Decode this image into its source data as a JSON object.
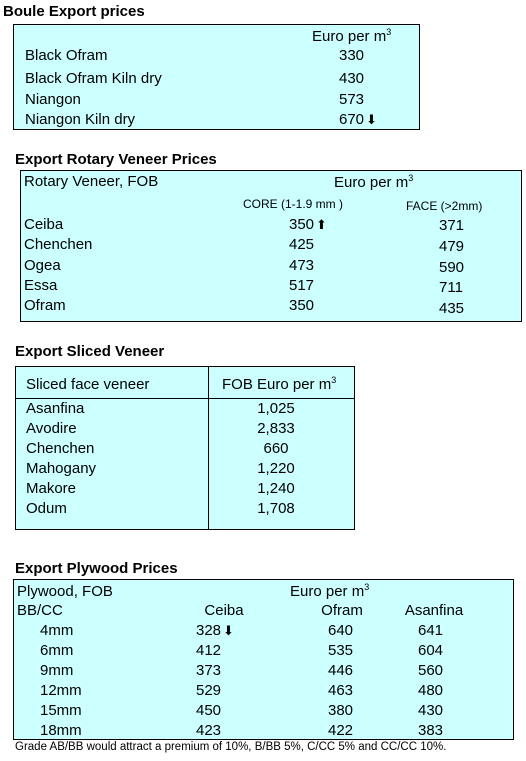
{
  "boule": {
    "title": "Boule Export prices",
    "header": "Euro per m",
    "unit_sup": "3",
    "rows": [
      {
        "name": "Black Ofram",
        "value": "330",
        "trend": ""
      },
      {
        "name": "Black Ofram  Kiln dry",
        "value": "430",
        "trend": ""
      },
      {
        "name": "Niangon",
        "value": "573",
        "trend": ""
      },
      {
        "name": "Niangon Kiln dry",
        "value": "670",
        "trend": "down"
      }
    ]
  },
  "rotary": {
    "title": "Export Rotary Veneer Prices",
    "label": "Rotary Veneer,  FOB",
    "header": "Euro  per m",
    "unit_sup": "3",
    "col1": "CORE (1-1.9 mm )",
    "col2": "FACE (>2mm)",
    "rows": [
      {
        "name": "Ceiba",
        "core": "350",
        "face": "371",
        "trend": "up"
      },
      {
        "name": "Chenchen",
        "core": "425",
        "face": "479",
        "trend": ""
      },
      {
        "name": "Ogea",
        "core": "473",
        "face": "590",
        "trend": ""
      },
      {
        "name": "Essa",
        "core": "517",
        "face": "711",
        "trend": ""
      },
      {
        "name": "Ofram",
        "core": "350",
        "face": "435",
        "trend": ""
      }
    ]
  },
  "sliced": {
    "title": "Export Sliced Veneer",
    "col1": "Sliced face veneer",
    "col2": "FOB Euro per m",
    "unit_sup": "3",
    "rows": [
      {
        "name": "Asanfina",
        "value": "1,025"
      },
      {
        "name": "Avodire",
        "value": "2,833"
      },
      {
        "name": "Chenchen",
        "value": "660"
      },
      {
        "name": "Mahogany",
        "value": "1,220"
      },
      {
        "name": "Makore",
        "value": "1,240"
      },
      {
        "name": "Odum",
        "value": "1,708"
      }
    ]
  },
  "plywood": {
    "title": "Export Plywood Prices",
    "label": "Plywood, FOB",
    "header": "Euro per m",
    "unit_sup": "3",
    "grade": "BB/CC",
    "cols": [
      "Ceiba",
      "Ofram",
      "Asanfina"
    ],
    "rows": [
      {
        "size": "4mm",
        "ceiba": "328",
        "ofram": "640",
        "asanfina": "641",
        "trend": "down"
      },
      {
        "size": "6mm",
        "ceiba": "412",
        "ofram": "535",
        "asanfina": "604",
        "trend": ""
      },
      {
        "size": "9mm",
        "ceiba": "373",
        "ofram": "446",
        "asanfina": "560",
        "trend": ""
      },
      {
        "size": "12mm",
        "ceiba": "529",
        "ofram": "463",
        "asanfina": "480",
        "trend": ""
      },
      {
        "size": "15mm",
        "ceiba": "450",
        "ofram": "380",
        "asanfina": "430",
        "trend": ""
      },
      {
        "size": "18mm",
        "ceiba": "423",
        "ofram": "422",
        "asanfina": "383",
        "trend": ""
      }
    ],
    "note": "Grade AB/BB would attract a premium of 10%, B/BB 5%, C/CC 5% and CC/CC 10%."
  },
  "colors": {
    "table_bg": "#ccffff",
    "border": "#000000"
  }
}
